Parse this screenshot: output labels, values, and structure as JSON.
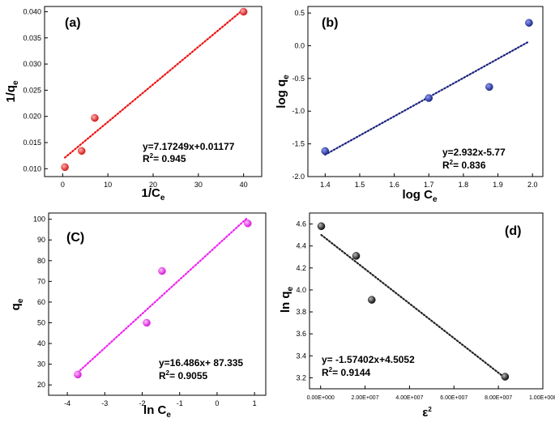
{
  "chart_data": [
    {
      "id": "a",
      "type": "scatter",
      "panel_label": "(a)",
      "title": "",
      "xlabel": {
        "base": "1/C",
        "sub": "e"
      },
      "ylabel": {
        "base": "1/q",
        "sub": "e"
      },
      "xlim": [
        -4,
        44
      ],
      "ylim": [
        0.0085,
        0.041
      ],
      "xticks": [
        0,
        10,
        20,
        30,
        40
      ],
      "yticks": [
        0.01,
        0.015,
        0.02,
        0.025,
        0.03,
        0.035,
        0.04
      ],
      "ytick_labels": [
        "0.010",
        "0.015",
        "0.020",
        "0.025",
        "0.030",
        "0.035",
        "0.040"
      ],
      "x": [
        0.5,
        4.2,
        7.1,
        40.0
      ],
      "y": [
        0.0103,
        0.0134,
        0.0197,
        0.04
      ],
      "fit": {
        "slope": 0.000717249,
        "intercept": 0.01177,
        "x_range": [
          0.5,
          40.0
        ]
      },
      "equation": "y=7.17249x+0.01177",
      "r2_prefix": "R",
      "r2_sup": "2",
      "r2_value": "= 0.945",
      "marker_color": "#e02020",
      "fit_color": "#ee1111"
    },
    {
      "id": "b",
      "type": "scatter",
      "panel_label": "(b)",
      "title": "",
      "xlabel": {
        "base": "log C",
        "sub": "e"
      },
      "ylabel": {
        "base": "log q",
        "sub": "e"
      },
      "xlim": [
        1.35,
        2.03
      ],
      "ylim": [
        -2.0,
        0.6
      ],
      "xticks": [
        1.4,
        1.5,
        1.6,
        1.7,
        1.8,
        1.9,
        2.0
      ],
      "xtick_labels": [
        "1.4",
        "1.5",
        "1.6",
        "1.7",
        "1.8",
        "1.9",
        "2.0"
      ],
      "yticks": [
        -2.0,
        -1.5,
        -1.0,
        -0.5,
        0.0,
        0.5
      ],
      "ytick_labels": [
        "-2.0",
        "-1.5",
        "-1.0",
        "-0.5",
        "0.0",
        "0.5"
      ],
      "x": [
        1.4,
        1.7,
        1.875,
        1.99
      ],
      "y": [
        -1.61,
        -0.8,
        -0.63,
        0.35
      ],
      "fit": {
        "slope": 2.932,
        "intercept": -5.77,
        "x_range": [
          1.4,
          1.99
        ]
      },
      "equation": "y=2.932x-5.77",
      "r2_prefix": "R",
      "r2_sup": "2",
      "r2_value": "= 0.836",
      "marker_color": "#1a237e",
      "fit_color": "#1a237e"
    },
    {
      "id": "c",
      "type": "scatter",
      "panel_label": "(C)",
      "title": "",
      "xlabel": {
        "base": "ln C",
        "sub": "e"
      },
      "ylabel": {
        "base": "q",
        "sub": "e"
      },
      "xlim": [
        -4.5,
        1.3
      ],
      "ylim": [
        15,
        103
      ],
      "xticks": [
        -4,
        -3,
        -2,
        -1,
        0,
        1
      ],
      "yticks": [
        20,
        30,
        40,
        50,
        60,
        70,
        80,
        90,
        100
      ],
      "x": [
        -3.72,
        -1.88,
        -1.47,
        0.82
      ],
      "y": [
        25,
        50,
        75,
        98
      ],
      "fit": {
        "slope": 16.486,
        "intercept": 87.335,
        "x_range": [
          -3.72,
          0.82
        ]
      },
      "equation": "y=16.486x+ 87.335",
      "r2_prefix": "R",
      "r2_sup": "2",
      "r2_value": "= 0.9055",
      "marker_color": "#ee22ee",
      "fit_color": "#ee22ee"
    },
    {
      "id": "d",
      "type": "scatter",
      "panel_label": "(d)",
      "title": "",
      "xlabel": {
        "base": "ε",
        "sup": "2"
      },
      "ylabel": {
        "base": "ln q",
        "sub": "e"
      },
      "xlim": [
        -5000000.0,
        100000000.0
      ],
      "ylim": [
        3.1,
        4.7
      ],
      "xticks": [
        0,
        20000000,
        40000000,
        60000000,
        80000000,
        100000000
      ],
      "xtick_labels": [
        "0.00E+000",
        "2.00E+007",
        "4.00E+007",
        "6.00E+007",
        "8.00E+007",
        "1.00E+008"
      ],
      "yticks": [
        3.2,
        3.4,
        3.6,
        3.8,
        4.0,
        4.2,
        4.4,
        4.6
      ],
      "ytick_labels": [
        "3.2",
        "3.4",
        "3.6",
        "3.8",
        "4.0",
        "4.2",
        "4.4",
        "4.6"
      ],
      "x": [
        300000,
        16000000,
        23000000,
        83000000
      ],
      "y": [
        4.58,
        4.31,
        3.91,
        3.21
      ],
      "fit": {
        "slope": -1.57402e-08,
        "intercept": 4.5052,
        "x_range": [
          300000,
          83000000
        ]
      },
      "equation": "y= -1.57402x+4.5052",
      "r2_prefix": "R",
      "r2_sup": "2",
      "r2_value": "= 0.9144",
      "marker_color": "#111111",
      "fit_color": "#222222"
    }
  ]
}
